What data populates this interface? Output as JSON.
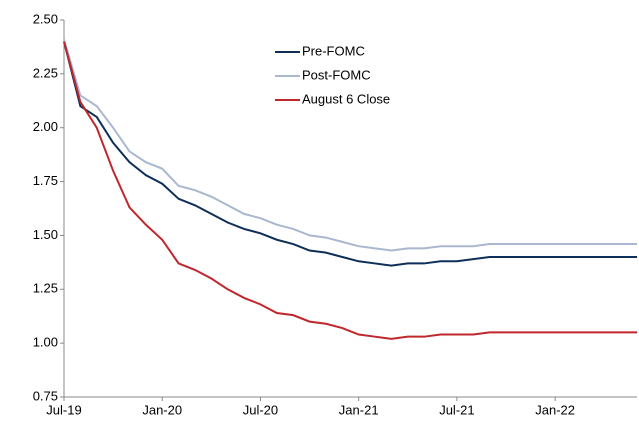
{
  "chart_data": {
    "type": "line",
    "categories": [
      "Jul-19",
      null,
      null,
      null,
      null,
      null,
      "Jan-20",
      null,
      null,
      null,
      null,
      null,
      "Jul-20",
      null,
      null,
      null,
      null,
      null,
      "Jan-21",
      null,
      null,
      null,
      null,
      null,
      "Jul-21",
      null,
      null,
      null,
      null,
      null,
      "Jan-22",
      null,
      null,
      null,
      null,
      null
    ],
    "series": [
      {
        "name": "Pre-FOMC",
        "color": "#0d2f5a",
        "values": [
          2.4,
          2.1,
          2.05,
          1.93,
          1.84,
          1.78,
          1.74,
          1.67,
          1.64,
          1.6,
          1.56,
          1.53,
          1.51,
          1.48,
          1.46,
          1.43,
          1.42,
          1.4,
          1.38,
          1.37,
          1.36,
          1.37,
          1.37,
          1.38,
          1.38,
          1.39,
          1.4,
          1.4,
          1.4,
          1.4,
          1.4,
          1.4,
          1.4,
          1.4,
          1.4,
          1.4
        ]
      },
      {
        "name": "Post-FOMC",
        "color": "#a9b8cf",
        "values": [
          2.41,
          2.15,
          2.1,
          2.0,
          1.89,
          1.84,
          1.81,
          1.73,
          1.71,
          1.68,
          1.64,
          1.6,
          1.58,
          1.55,
          1.53,
          1.5,
          1.49,
          1.47,
          1.45,
          1.44,
          1.43,
          1.44,
          1.44,
          1.45,
          1.45,
          1.45,
          1.46,
          1.46,
          1.46,
          1.46,
          1.46,
          1.46,
          1.46,
          1.46,
          1.46,
          1.46
        ]
      },
      {
        "name": "August 6 Close",
        "color": "#c0272d",
        "values": [
          2.4,
          2.12,
          2.0,
          1.8,
          1.63,
          1.55,
          1.48,
          1.37,
          1.34,
          1.3,
          1.25,
          1.21,
          1.18,
          1.14,
          1.13,
          1.1,
          1.09,
          1.07,
          1.04,
          1.03,
          1.02,
          1.03,
          1.03,
          1.04,
          1.04,
          1.04,
          1.05,
          1.05,
          1.05,
          1.05,
          1.05,
          1.05,
          1.05,
          1.05,
          1.05,
          1.05
        ]
      }
    ],
    "ylim": [
      0.75,
      2.5
    ],
    "yticks": [
      {
        "value": 0.75,
        "label": "0.75"
      },
      {
        "value": 1,
        "label": "1.00"
      },
      {
        "value": 1.25,
        "label": "1.25"
      },
      {
        "value": 1.5,
        "label": "1.50"
      },
      {
        "value": 1.75,
        "label": "1.75"
      },
      {
        "value": 2,
        "label": "2.00"
      },
      {
        "value": 2.25,
        "label": "2.25"
      },
      {
        "value": 2.5,
        "label": "2.50"
      }
    ],
    "grid": false
  }
}
